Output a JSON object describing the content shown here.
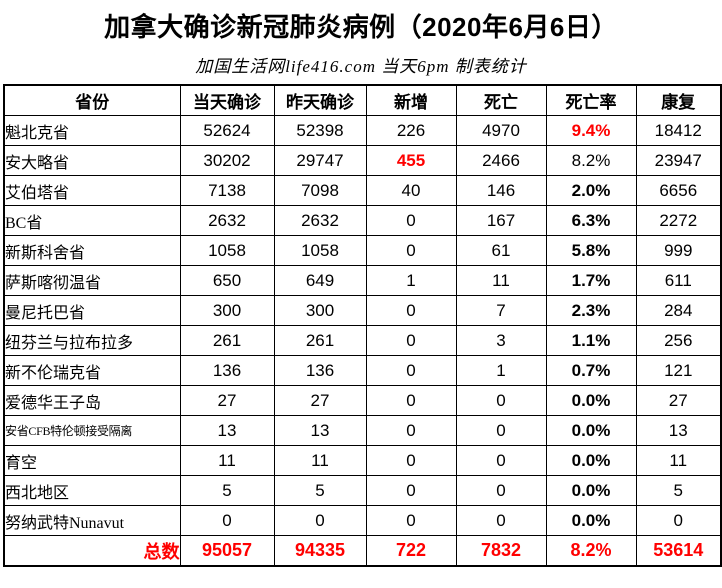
{
  "colors": {
    "highlight_red": "#FF0000",
    "text": "#000000",
    "border": "#000000",
    "background": "#FFFFFF"
  },
  "chart_data": {
    "type": "table",
    "title": "加拿大确诊新冠肺炎病例（2020年6月6日）",
    "subtitle": "加国生活网life416.com 当天6pm 制表统计",
    "columns": [
      "省份",
      "当天确诊",
      "昨天确诊",
      "新增",
      "死亡",
      "死亡率",
      "康复"
    ],
    "rows": [
      {
        "name": "魁北克省",
        "values": [
          "52624",
          "52398",
          "226",
          "4970",
          "9.4%",
          "18412"
        ],
        "styles": [
          "",
          "",
          "",
          "",
          "red bold",
          ""
        ]
      },
      {
        "name": "安大略省",
        "values": [
          "30202",
          "29747",
          "455",
          "2466",
          "8.2%",
          "23947"
        ],
        "styles": [
          "",
          "",
          "red bold",
          "",
          "",
          ""
        ]
      },
      {
        "name": "艾伯塔省",
        "values": [
          "7138",
          "7098",
          "40",
          "146",
          "2.0%",
          "6656"
        ],
        "styles": [
          "",
          "",
          "",
          "",
          "bold",
          ""
        ]
      },
      {
        "name": "BC省",
        "values": [
          "2632",
          "2632",
          "0",
          "167",
          "6.3%",
          "2272"
        ],
        "styles": [
          "",
          "",
          "",
          "",
          "bold",
          ""
        ]
      },
      {
        "name": "新斯科舍省",
        "values": [
          "1058",
          "1058",
          "0",
          "61",
          "5.8%",
          "999"
        ],
        "styles": [
          "",
          "",
          "",
          "",
          "bold",
          ""
        ]
      },
      {
        "name": "萨斯喀彻温省",
        "values": [
          "650",
          "649",
          "1",
          "11",
          "1.7%",
          "611"
        ],
        "styles": [
          "",
          "",
          "",
          "",
          "bold",
          ""
        ]
      },
      {
        "name": "曼尼托巴省",
        "values": [
          "300",
          "300",
          "0",
          "7",
          "2.3%",
          "284"
        ],
        "styles": [
          "",
          "",
          "",
          "",
          "bold",
          ""
        ]
      },
      {
        "name": "纽芬兰与拉布拉多",
        "values": [
          "261",
          "261",
          "0",
          "3",
          "1.1%",
          "256"
        ],
        "styles": [
          "",
          "",
          "",
          "",
          "bold",
          ""
        ]
      },
      {
        "name": "新不伦瑞克省",
        "values": [
          "136",
          "136",
          "0",
          "1",
          "0.7%",
          "121"
        ],
        "styles": [
          "",
          "",
          "",
          "",
          "bold",
          ""
        ]
      },
      {
        "name": "爱德华王子岛",
        "values": [
          "27",
          "27",
          "0",
          "0",
          "0.0%",
          "27"
        ],
        "styles": [
          "",
          "",
          "",
          "",
          "bold",
          ""
        ]
      },
      {
        "name": "安省CFB特伦顿接受隔离",
        "small": true,
        "values": [
          "13",
          "13",
          "0",
          "0",
          "0.0%",
          "13"
        ],
        "styles": [
          "",
          "",
          "",
          "",
          "bold",
          ""
        ]
      },
      {
        "name": "育空",
        "values": [
          "11",
          "11",
          "0",
          "0",
          "0.0%",
          "11"
        ],
        "styles": [
          "",
          "",
          "",
          "",
          "bold",
          ""
        ]
      },
      {
        "name": "西北地区",
        "values": [
          "5",
          "5",
          "0",
          "0",
          "0.0%",
          "5"
        ],
        "styles": [
          "",
          "",
          "",
          "",
          "bold",
          ""
        ]
      },
      {
        "name": "努纳武特Nunavut",
        "values": [
          "0",
          "0",
          "0",
          "0",
          "0.0%",
          "0"
        ],
        "styles": [
          "",
          "",
          "",
          "",
          "bold",
          ""
        ]
      }
    ],
    "total": {
      "label": "总数",
      "values": [
        "95057",
        "94335",
        "722",
        "7832",
        "8.2%",
        "53614"
      ]
    }
  }
}
